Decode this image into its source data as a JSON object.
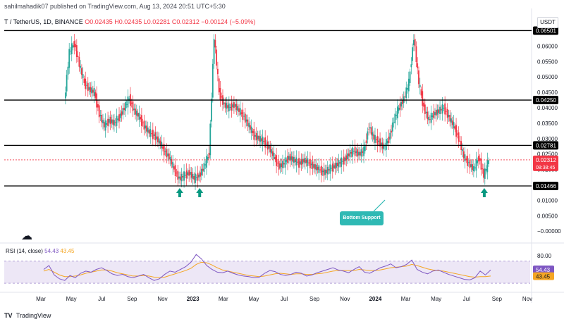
{
  "header": {
    "publisher": "sahilmahadik07 published on TradingView.com, Aug 13, 2024 20:51 UTC+5:30",
    "symbol": "T / TetherUS, 1D, BINANCE",
    "ohlc": "O0.02435 H0.02435 L0.02281 C0.02312 −0.00124 (−5.09%)"
  },
  "unit_label": "USDT",
  "callout_label": "Bottom Support",
  "rsi_label": {
    "title": "RSI (14, close)",
    "value1": "54.43",
    "value2": "43.45"
  },
  "footer": {
    "brand": "TradingView"
  },
  "colors": {
    "up": "#26a69a",
    "down": "#f23645",
    "level_line": "#000000",
    "rsi_line": "#7e57c2",
    "rsi_ma": "#f5a623",
    "rsi_band": "#ede7f6",
    "arrow": "#089981",
    "callout": "#2fb9b4"
  },
  "icons": {
    "arrow": "up-arrow-icon",
    "bulb": "lightbulb-icon"
  },
  "chart_data": {
    "type": "line",
    "x_tick_labels": [
      "Mar",
      "May",
      "Jul",
      "Sep",
      "Nov",
      "2023",
      "Mar",
      "May",
      "Jul",
      "Sep",
      "Nov",
      "2024",
      "Mar",
      "May",
      "Jul",
      "Sep",
      "Nov"
    ],
    "y_tick_labels": [
      "0.06000",
      "0.05500",
      "0.05000",
      "0.04500",
      "0.04000",
      "0.03500",
      "0.03000",
      "0.02500",
      "0.02000",
      "0.01000",
      "0.00500",
      "−0.00000"
    ],
    "y_ticks": [
      0.06,
      0.055,
      0.05,
      0.045,
      0.04,
      0.035,
      0.03,
      0.025,
      0.02,
      0.01,
      0.005,
      0.0
    ],
    "ylim": [
      -0.0027,
      0.0658
    ],
    "levels": [
      {
        "label": "0.06501",
        "value": 0.06501
      },
      {
        "label": "0.04250",
        "value": 0.0425
      },
      {
        "label": "0.02781",
        "value": 0.02781
      },
      {
        "label": "0.01466",
        "value": 0.01466
      }
    ],
    "current_price": {
      "label": "0.02312",
      "value": 0.02312,
      "countdown": "08:38:45"
    },
    "price_series": [
      0.042,
      0.058,
      0.061,
      0.054,
      0.048,
      0.046,
      0.045,
      0.038,
      0.034,
      0.036,
      0.035,
      0.037,
      0.04,
      0.043,
      0.039,
      0.037,
      0.034,
      0.032,
      0.031,
      0.029,
      0.026,
      0.024,
      0.02,
      0.017,
      0.018,
      0.019,
      0.017,
      0.018,
      0.021,
      0.025,
      0.063,
      0.045,
      0.041,
      0.04,
      0.041,
      0.039,
      0.037,
      0.034,
      0.031,
      0.03,
      0.029,
      0.027,
      0.024,
      0.021,
      0.022,
      0.024,
      0.023,
      0.022,
      0.023,
      0.022,
      0.021,
      0.02,
      0.019,
      0.02,
      0.021,
      0.022,
      0.023,
      0.025,
      0.026,
      0.025,
      0.026,
      0.034,
      0.03,
      0.029,
      0.027,
      0.03,
      0.036,
      0.04,
      0.043,
      0.048,
      0.063,
      0.048,
      0.04,
      0.036,
      0.038,
      0.039,
      0.04,
      0.037,
      0.034,
      0.03,
      0.024,
      0.022,
      0.02,
      0.024,
      0.018,
      0.023
    ],
    "rsi": {
      "ylim": [
        20,
        90
      ],
      "band": [
        30,
        70
      ],
      "tick_labels": [
        "80.00"
      ],
      "ticks": [
        80
      ],
      "series": [
        55,
        62,
        45,
        38,
        35,
        44,
        40,
        48,
        52,
        50,
        55,
        58,
        53,
        47,
        44,
        46,
        42,
        40,
        43,
        46,
        40,
        35,
        38,
        46,
        52,
        50,
        55,
        60,
        68,
        82,
        74,
        62,
        55,
        50,
        49,
        52,
        48,
        45,
        43,
        42,
        40,
        41,
        48,
        53,
        51,
        46,
        44,
        46,
        50,
        48,
        43,
        45,
        49,
        52,
        55,
        58,
        54,
        52,
        49,
        55,
        60,
        50,
        48,
        53,
        58,
        61,
        65,
        58,
        60,
        64,
        72,
        55,
        50,
        47,
        52,
        54,
        50,
        46,
        43,
        40,
        37,
        36,
        40,
        52,
        45,
        54
      ],
      "ma_series": [
        52,
        55,
        50,
        45,
        42,
        42,
        43,
        45,
        48,
        50,
        52,
        54,
        54,
        52,
        49,
        47,
        45,
        43,
        43,
        44,
        43,
        41,
        40,
        41,
        44,
        47,
        50,
        53,
        57,
        64,
        68,
        67,
        63,
        58,
        54,
        52,
        50,
        48,
        46,
        44,
        43,
        42,
        43,
        45,
        47,
        48,
        47,
        46,
        47,
        47,
        46,
        46,
        47,
        48,
        50,
        52,
        53,
        53,
        53,
        53,
        55,
        54,
        53,
        53,
        54,
        56,
        58,
        59,
        60,
        61,
        64,
        62,
        59,
        56,
        54,
        53,
        52,
        50,
        48,
        46,
        44,
        42,
        41,
        42,
        42,
        43
      ],
      "value_label_1": "54.43",
      "value_label_2": "43.45"
    },
    "arrows_at_index": [
      23,
      27,
      84
    ]
  }
}
